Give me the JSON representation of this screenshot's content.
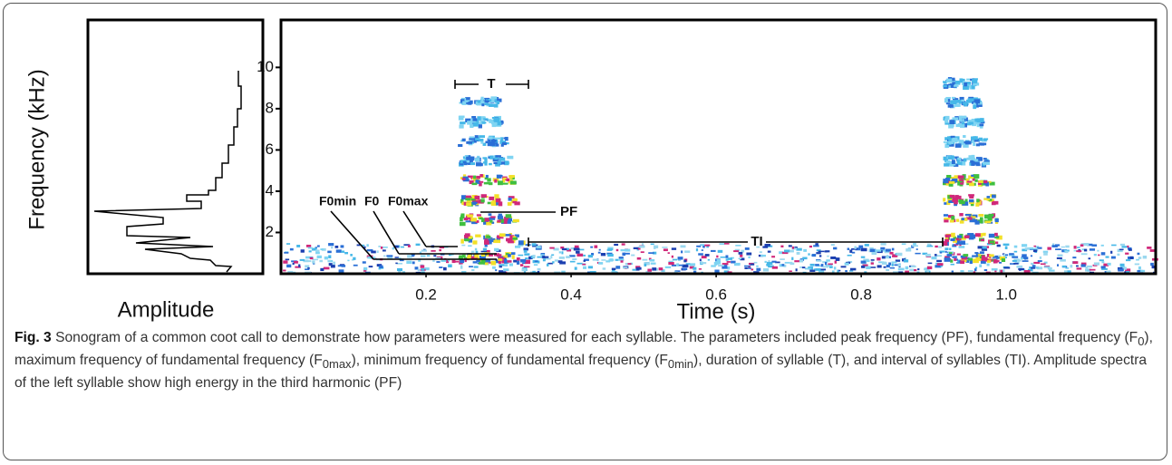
{
  "figure": {
    "amplitude_panel": {
      "xlabel": "Amplitude"
    },
    "chart_data": {
      "type": "spectrogram",
      "xlabel": "Time (s)",
      "ylabel": "Frequency (kHz)",
      "xlim": [
        0,
        1.206
      ],
      "ylim": [
        0,
        12.3
      ],
      "xticks": [
        0.2,
        0.4,
        0.6,
        0.8,
        {
          "value": 1,
          "label": "1.0"
        }
      ],
      "yticks": [
        2,
        4,
        6,
        8,
        10
      ],
      "annotations": {
        "T": "T",
        "TI": "TI",
        "PF": "PF",
        "F0min": "F0min",
        "F0": "F0",
        "F0max": "F0max"
      }
    },
    "caption": {
      "label": "Fig. 3",
      "runs": [
        {
          "text": "Sonogram of a common coot call to demonstrate how parameters were measured for each syllable. The parameters included peak frequency (PF), fundamental frequency (F"
        },
        {
          "sub": "0"
        },
        {
          "text": "), maximum frequency of fundamental frequency (F"
        },
        {
          "sub": "0max"
        },
        {
          "text": "), minimum frequency of fundamental frequency (F"
        },
        {
          "sub": "0min"
        },
        {
          "text": "), duration of syllable (T), and interval of syllables (TI). Amplitude spectra of the left syllable show high energy in the third harmonic (PF)"
        }
      ]
    }
  }
}
